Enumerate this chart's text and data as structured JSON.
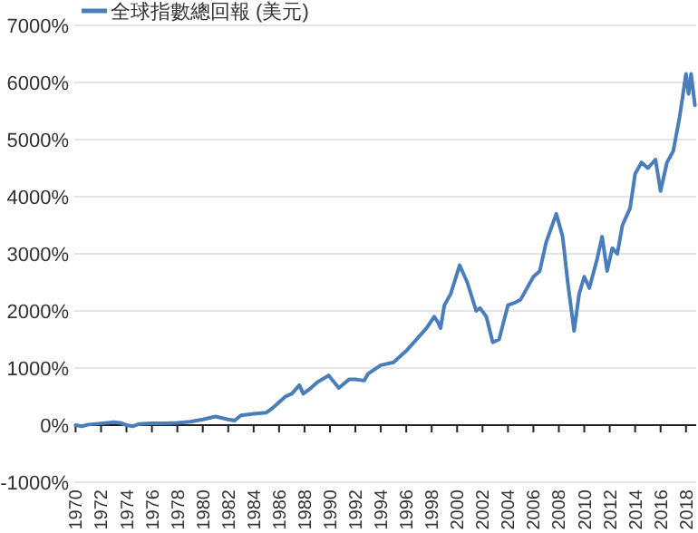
{
  "chart_data": {
    "type": "line",
    "legend": "top left",
    "grid": "y",
    "x": [
      1970,
      1970.5,
      1971,
      1972,
      1973,
      1973.5,
      1974,
      1974.5,
      1975,
      1976,
      1977,
      1978,
      1979,
      1980,
      1981,
      1982,
      1982.5,
      1983,
      1984,
      1985,
      1985.5,
      1986,
      1986.5,
      1987,
      1987.6,
      1987.9,
      1988.5,
      1989,
      1989.9,
      1990.7,
      1991.5,
      1992,
      1992.7,
      1993,
      1994,
      1995,
      1996,
      1997,
      1997.6,
      1998.2,
      1998.5,
      1998.7,
      1999,
      1999.5,
      2000.2,
      2000.8,
      2001.5,
      2001.8,
      2002.3,
      2002.8,
      2003.3,
      2004,
      2004.6,
      2005,
      2006,
      2006.5,
      2007,
      2007.8,
      2008.3,
      2008.7,
      2009.2,
      2009.6,
      2010,
      2010.4,
      2011,
      2011.4,
      2011.8,
      2012.2,
      2012.6,
      2013,
      2013.6,
      2014,
      2014.5,
      2015,
      2015.6,
      2016,
      2016.5,
      2017,
      2017.5,
      2018,
      2018.2,
      2018.4,
      2018.7
    ],
    "series": [
      {
        "name": "全球指數總回報 (美元)",
        "color": "#4a7ebb",
        "values": [
          0,
          -20,
          10,
          30,
          50,
          40,
          0,
          -20,
          20,
          30,
          30,
          40,
          60,
          100,
          150,
          100,
          80,
          170,
          200,
          220,
          300,
          400,
          500,
          550,
          700,
          550,
          650,
          750,
          870,
          650,
          800,
          800,
          780,
          900,
          1050,
          1100,
          1300,
          1550,
          1700,
          1900,
          1800,
          1700,
          2100,
          2300,
          2800,
          2500,
          2000,
          2050,
          1900,
          1450,
          1500,
          2100,
          2150,
          2200,
          2600,
          2700,
          3200,
          3700,
          3300,
          2500,
          1650,
          2300,
          2600,
          2400,
          2900,
          3300,
          2700,
          3100,
          3000,
          3500,
          3800,
          4400,
          4600,
          4500,
          4650,
          4100,
          4600,
          4800,
          5400,
          6150,
          5800,
          6150,
          5600
        ]
      }
    ],
    "xlim": [
      1969.9,
      2018.8
    ],
    "xticks": [
      1970,
      1972,
      1974,
      1976,
      1978,
      1980,
      1982,
      1984,
      1986,
      1988,
      1990,
      1992,
      1994,
      1996,
      1998,
      2000,
      2002,
      2004,
      2006,
      2008,
      2010,
      2012,
      2014,
      2016,
      2018
    ],
    "ylim": [
      -1000,
      7000
    ],
    "yticks": [
      {
        "value": -1000,
        "label": "-1000%"
      },
      {
        "value": 0,
        "label": "0%"
      },
      {
        "value": 1000,
        "label": "1000%"
      },
      {
        "value": 2000,
        "label": "2000%"
      },
      {
        "value": 3000,
        "label": "3000%"
      },
      {
        "value": 4000,
        "label": "4000%"
      },
      {
        "value": 5000,
        "label": "5000%"
      },
      {
        "value": 6000,
        "label": "6000%"
      },
      {
        "value": 7000,
        "label": "7000%"
      }
    ]
  }
}
